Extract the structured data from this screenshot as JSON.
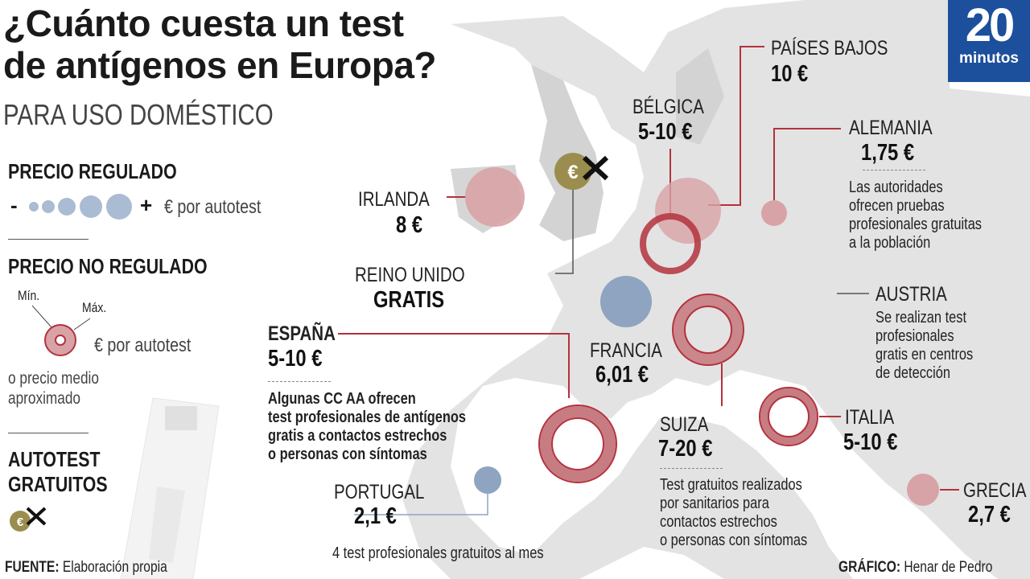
{
  "title": {
    "line1": "¿Cuánto cuesta un test",
    "line2": "de antígenos en Europa?",
    "subtitle": "PARA USO DOMÉSTICO"
  },
  "logo": {
    "number": "20",
    "word": "minutos"
  },
  "legend": {
    "regulated_heading": "PRECIO REGULADO",
    "regulated_minus": "-",
    "regulated_plus": "+",
    "regulated_unit": "€ por autotest",
    "unregulated_heading": "PRECIO NO REGULADO",
    "min_label": "Mín.",
    "max_label": "Máx.",
    "unregulated_unit": "€ por autotest",
    "average_line1": "o precio medio",
    "average_line2": "aproximado",
    "free_heading_line1": "AUTOTEST",
    "free_heading_line2": "GRATUITOS"
  },
  "countries": {
    "irlanda": {
      "name": "IRLANDA",
      "price": "8 €"
    },
    "reino_unido": {
      "name": "REINO UNIDO",
      "price": "GRATIS"
    },
    "belgica": {
      "name": "BÉLGICA",
      "price": "5-10 €"
    },
    "paises_bajos": {
      "name": "PAÍSES BAJOS",
      "price": "10 €"
    },
    "alemania": {
      "name": "ALEMANIA",
      "price": "1,75 €",
      "note": [
        "Las autoridades",
        "ofrecen pruebas",
        "profesionales gratuitas",
        "a la población"
      ]
    },
    "austria": {
      "name": "AUSTRIA",
      "note": [
        "Se realizan test",
        "profesionales",
        "gratis en centros",
        "de detección"
      ]
    },
    "francia": {
      "name": "FRANCIA",
      "price": "6,01 €"
    },
    "espana": {
      "name": "ESPAÑA",
      "price": "5-10 €",
      "note": [
        "Algunas CC AA ofrecen",
        "test profesionales de antígenos",
        "gratis a contactos estrechos",
        "o personas con síntomas"
      ]
    },
    "suiza": {
      "name": "SUIZA",
      "price": "7-20 €",
      "note": [
        "Test gratuitos realizados",
        "por sanitarios para",
        "contactos estrechos",
        "o personas con síntomas"
      ]
    },
    "italia": {
      "name": "ITALIA",
      "price": "5-10 €"
    },
    "grecia": {
      "name": "GRECIA",
      "price": "2,7 €"
    },
    "portugal": {
      "name": "PORTUGAL",
      "price": "2,1 €",
      "note": "4 test profesionales gratuitos al mes"
    }
  },
  "footer": {
    "source_label": "FUENTE:",
    "source": "Elaboración propia",
    "credit_label": "GRÁFICO:",
    "credit": "Henar de Pedro"
  },
  "colors": {
    "map": "#dcdcdc",
    "pink": "#d8a3a6",
    "ring": "#b3323d",
    "blue": "#8ea4c0",
    "coin": "#9b8d4e",
    "logo": "#1c4f9c"
  }
}
